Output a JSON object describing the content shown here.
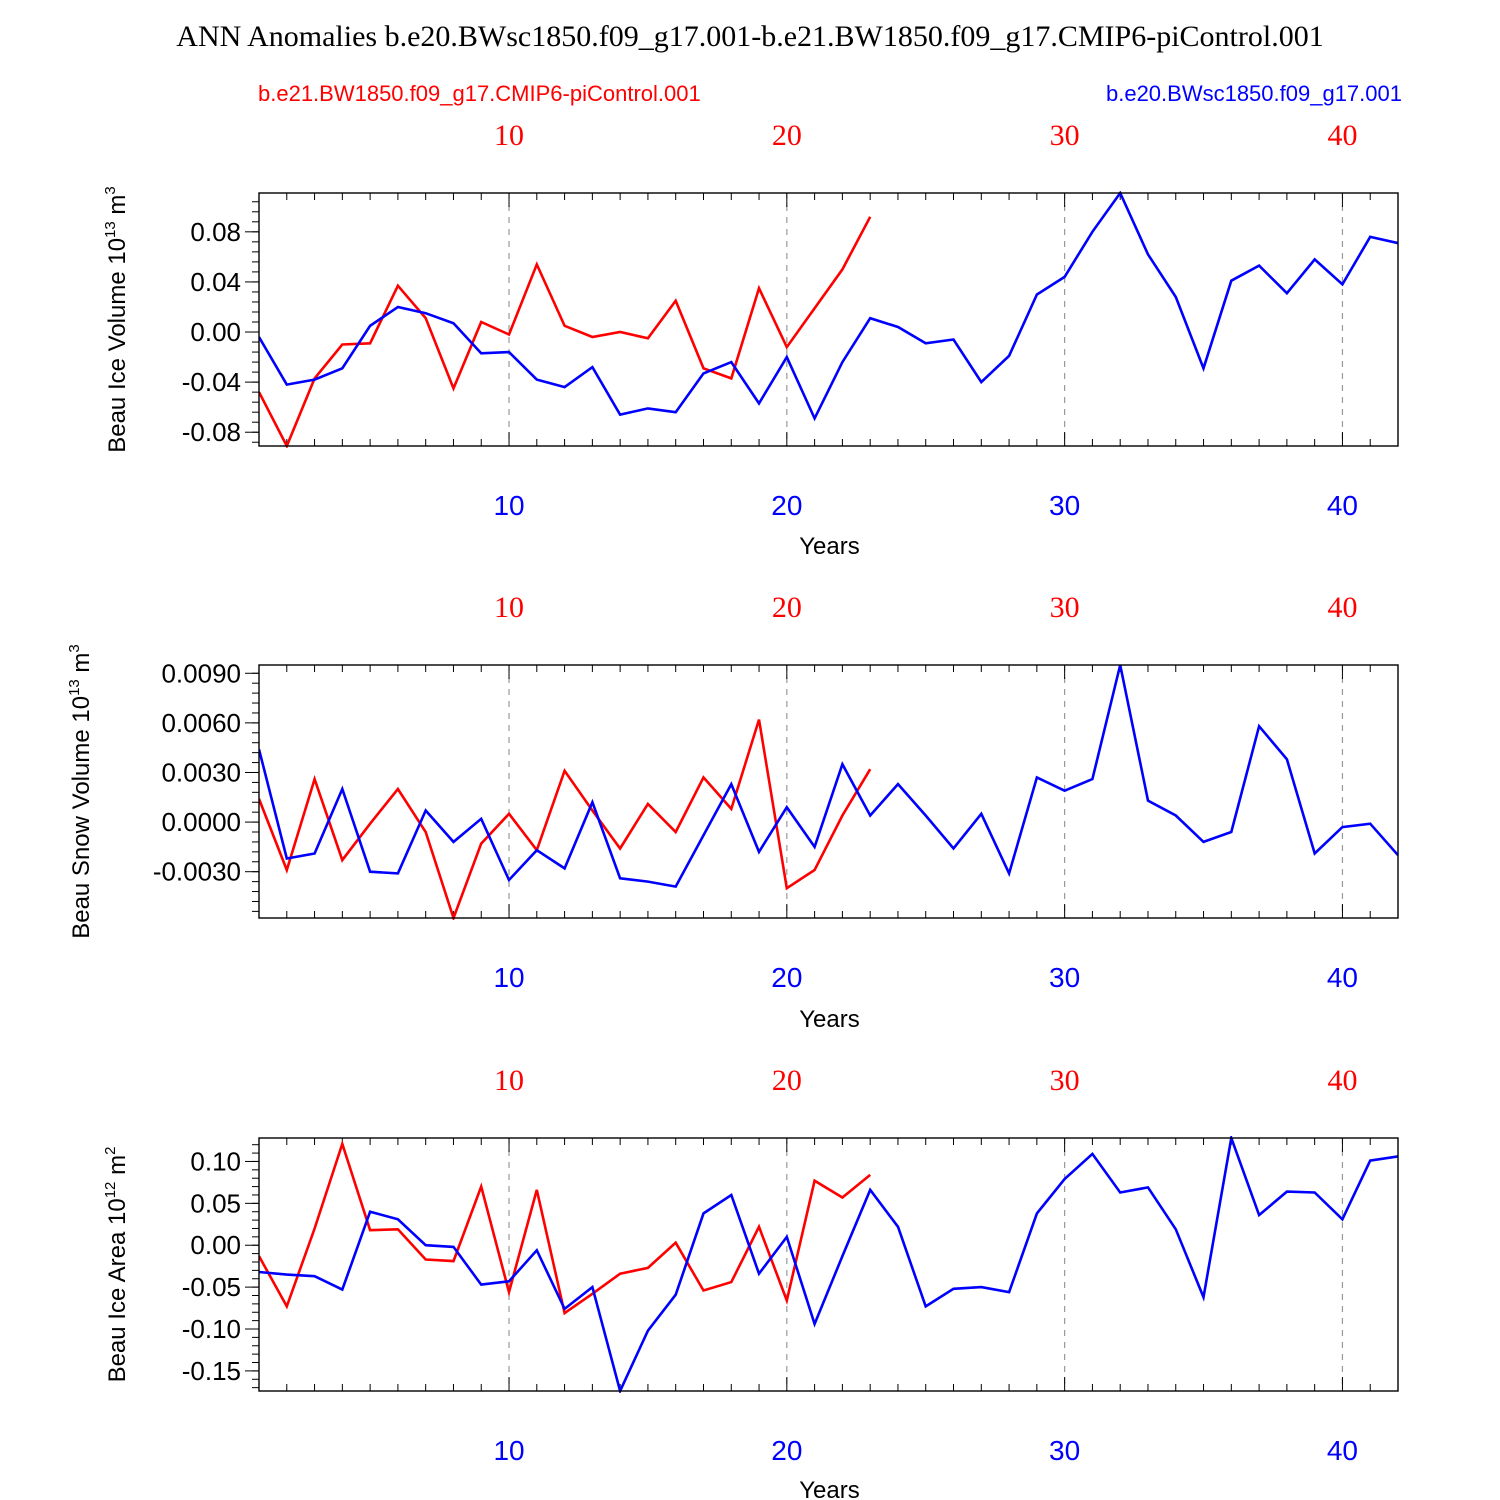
{
  "title": "ANN Anomalies b.e20.BWsc1850.f09_g17.001-b.e21.BW1850.f09_g17.CMIP6-piControl.001",
  "colors": {
    "red": "#ff0000",
    "blue": "#0000ff",
    "grid": "#999999",
    "axis": "#000000"
  },
  "legend": {
    "left": "b.e21.BW1850.f09_g17.CMIP6-piControl.001",
    "right": "b.e20.BWsc1850.f09_g17.001"
  },
  "chart_data": [
    {
      "type": "line",
      "ylabel": "Beau Ice Volume",
      "yunit_base": " 10",
      "yunit_exp": "13",
      "yunit_tail": " m",
      "yunit_tail_exp": "3",
      "xlabel": "Years",
      "xlim": [
        1,
        42
      ],
      "ylim": [
        -0.091,
        0.111
      ],
      "ytick_values": [
        -0.08,
        -0.04,
        0.0,
        0.04,
        0.08
      ],
      "ytick_labels": [
        "-0.08",
        "-0.04",
        "0.00",
        "0.04",
        "0.08"
      ],
      "yminor_step": 0.008,
      "xticks": [
        10,
        20,
        30,
        40
      ],
      "xtick_labels": [
        "10",
        "20",
        "30",
        "40"
      ],
      "series": [
        {
          "name": "b.e21.BW1850.f09_g17.CMIP6-piControl.001",
          "color": "red",
          "x": [
            1,
            2,
            3,
            4,
            5,
            6,
            7,
            8,
            9,
            10,
            11,
            12,
            13,
            14,
            15,
            16,
            17,
            18,
            19,
            20,
            21,
            22,
            23
          ],
          "values": [
            -0.048,
            -0.091,
            -0.037,
            -0.01,
            -0.009,
            0.037,
            0.011,
            -0.045,
            0.008,
            -0.002,
            0.054,
            0.005,
            -0.004,
            0.0,
            -0.005,
            0.025,
            -0.029,
            -0.037,
            0.035,
            -0.012,
            0.019,
            0.05,
            0.092
          ]
        },
        {
          "name": "b.e20.BWsc1850.f09_g17.001",
          "color": "blue",
          "x": [
            1,
            2,
            3,
            4,
            5,
            6,
            7,
            8,
            9,
            10,
            11,
            12,
            13,
            14,
            15,
            16,
            17,
            18,
            19,
            20,
            21,
            22,
            23,
            24,
            25,
            26,
            27,
            28,
            29,
            30,
            31,
            32,
            33,
            34,
            35,
            36,
            37,
            38,
            39,
            40,
            41,
            42
          ],
          "values": [
            -0.004,
            -0.042,
            -0.038,
            -0.029,
            0.005,
            0.02,
            0.015,
            0.007,
            -0.017,
            -0.016,
            -0.038,
            -0.044,
            -0.028,
            -0.066,
            -0.061,
            -0.064,
            -0.033,
            -0.024,
            -0.057,
            -0.02,
            -0.069,
            -0.024,
            0.011,
            0.004,
            -0.009,
            -0.006,
            -0.04,
            -0.019,
            0.03,
            0.044,
            0.08,
            0.111,
            0.062,
            0.028,
            -0.029,
            0.041,
            0.053,
            0.031,
            0.058,
            0.038,
            0.076,
            0.071
          ]
        }
      ]
    },
    {
      "type": "line",
      "ylabel": "Beau Snow Volume",
      "yunit_base": " 10",
      "yunit_exp": "13",
      "yunit_tail": " m",
      "yunit_tail_exp": "3",
      "xlabel": "Years",
      "xlim": [
        1,
        42
      ],
      "ylim": [
        -0.0058,
        0.0095
      ],
      "ytick_values": [
        -0.003,
        0.0,
        0.003,
        0.006,
        0.009
      ],
      "ytick_labels": [
        "-0.0030",
        "0.0000",
        "0.0030",
        "0.0060",
        "0.0090"
      ],
      "yminor_step": 0.0006,
      "xticks": [
        10,
        20,
        30,
        40
      ],
      "xtick_labels": [
        "10",
        "20",
        "30",
        "40"
      ],
      "series": [
        {
          "name": "b.e21.BW1850.f09_g17.CMIP6-piControl.001",
          "color": "red",
          "x": [
            1,
            2,
            3,
            4,
            5,
            6,
            7,
            8,
            9,
            10,
            11,
            12,
            13,
            14,
            15,
            16,
            17,
            18,
            19,
            20,
            21,
            22,
            23
          ],
          "values": [
            0.0014,
            -0.0029,
            0.0026,
            -0.0023,
            -0.0001,
            0.002,
            -0.0006,
            -0.0058,
            -0.0013,
            0.0005,
            -0.0017,
            0.0031,
            0.0007,
            -0.0016,
            0.0011,
            -0.0006,
            0.0027,
            0.0008,
            0.0062,
            -0.004,
            -0.0029,
            0.0004,
            0.0032
          ]
        },
        {
          "name": "b.e20.BWsc1850.f09_g17.001",
          "color": "blue",
          "x": [
            1,
            2,
            3,
            4,
            5,
            6,
            7,
            8,
            9,
            10,
            11,
            12,
            13,
            14,
            15,
            16,
            17,
            18,
            19,
            20,
            21,
            22,
            23,
            24,
            25,
            26,
            27,
            28,
            29,
            30,
            31,
            32,
            33,
            34,
            35,
            36,
            37,
            38,
            39,
            40,
            41,
            42
          ],
          "values": [
            0.0044,
            -0.0022,
            -0.0019,
            0.002,
            -0.003,
            -0.0031,
            0.0007,
            -0.0012,
            0.0002,
            -0.0035,
            -0.0017,
            -0.0028,
            0.0012,
            -0.0034,
            -0.0036,
            -0.0039,
            -0.0008,
            0.0023,
            -0.0018,
            0.0009,
            -0.0015,
            0.0035,
            0.0004,
            0.0023,
            0.0004,
            -0.0016,
            0.0005,
            -0.0031,
            0.0027,
            0.0019,
            0.0026,
            0.0095,
            0.0013,
            0.0004,
            -0.0012,
            -0.0006,
            0.0058,
            0.0038,
            -0.0019,
            -0.0003,
            -0.0001,
            -0.002
          ]
        }
      ]
    },
    {
      "type": "line",
      "ylabel": "Beau Ice Area",
      "yunit_base": " 10",
      "yunit_exp": "12",
      "yunit_tail": " m",
      "yunit_tail_exp": "2",
      "xlabel": "Years",
      "xlim": [
        1,
        42
      ],
      "ylim": [
        -0.174,
        0.128
      ],
      "ytick_values": [
        -0.15,
        -0.1,
        -0.05,
        0.0,
        0.05,
        0.1
      ],
      "ytick_labels": [
        "-0.15",
        "-0.10",
        "-0.05",
        "0.00",
        "0.05",
        "0.10"
      ],
      "yminor_step": 0.01,
      "xticks": [
        10,
        20,
        30,
        40
      ],
      "xtick_labels": [
        "10",
        "20",
        "30",
        "40"
      ],
      "series": [
        {
          "name": "b.e21.BW1850.f09_g17.CMIP6-piControl.001",
          "color": "red",
          "x": [
            1,
            2,
            3,
            4,
            5,
            6,
            7,
            8,
            9,
            10,
            11,
            12,
            13,
            14,
            15,
            16,
            17,
            18,
            19,
            20,
            21,
            22,
            23
          ],
          "values": [
            -0.013,
            -0.073,
            0.02,
            0.121,
            0.018,
            0.019,
            -0.017,
            -0.019,
            0.07,
            -0.056,
            0.066,
            -0.081,
            -0.058,
            -0.034,
            -0.027,
            0.003,
            -0.054,
            -0.044,
            0.022,
            -0.066,
            0.077,
            0.057,
            0.084
          ]
        },
        {
          "name": "b.e20.BWsc1850.f09_g17.001",
          "color": "blue",
          "x": [
            1,
            2,
            3,
            4,
            5,
            6,
            7,
            8,
            9,
            10,
            11,
            12,
            13,
            14,
            15,
            16,
            17,
            18,
            19,
            20,
            21,
            22,
            23,
            24,
            25,
            26,
            27,
            28,
            29,
            30,
            31,
            32,
            33,
            34,
            35,
            36,
            37,
            38,
            39,
            40,
            41,
            42
          ],
          "values": [
            -0.032,
            -0.035,
            -0.037,
            -0.053,
            0.04,
            0.031,
            0.0,
            -0.002,
            -0.047,
            -0.043,
            -0.006,
            -0.076,
            -0.05,
            -0.174,
            -0.102,
            -0.059,
            0.038,
            0.06,
            -0.034,
            0.01,
            -0.094,
            -0.013,
            0.066,
            0.022,
            -0.073,
            -0.052,
            -0.05,
            -0.056,
            0.038,
            0.079,
            0.109,
            0.063,
            0.069,
            0.019,
            -0.062,
            0.128,
            0.036,
            0.064,
            0.063,
            0.031,
            0.101,
            0.106
          ]
        }
      ]
    }
  ]
}
